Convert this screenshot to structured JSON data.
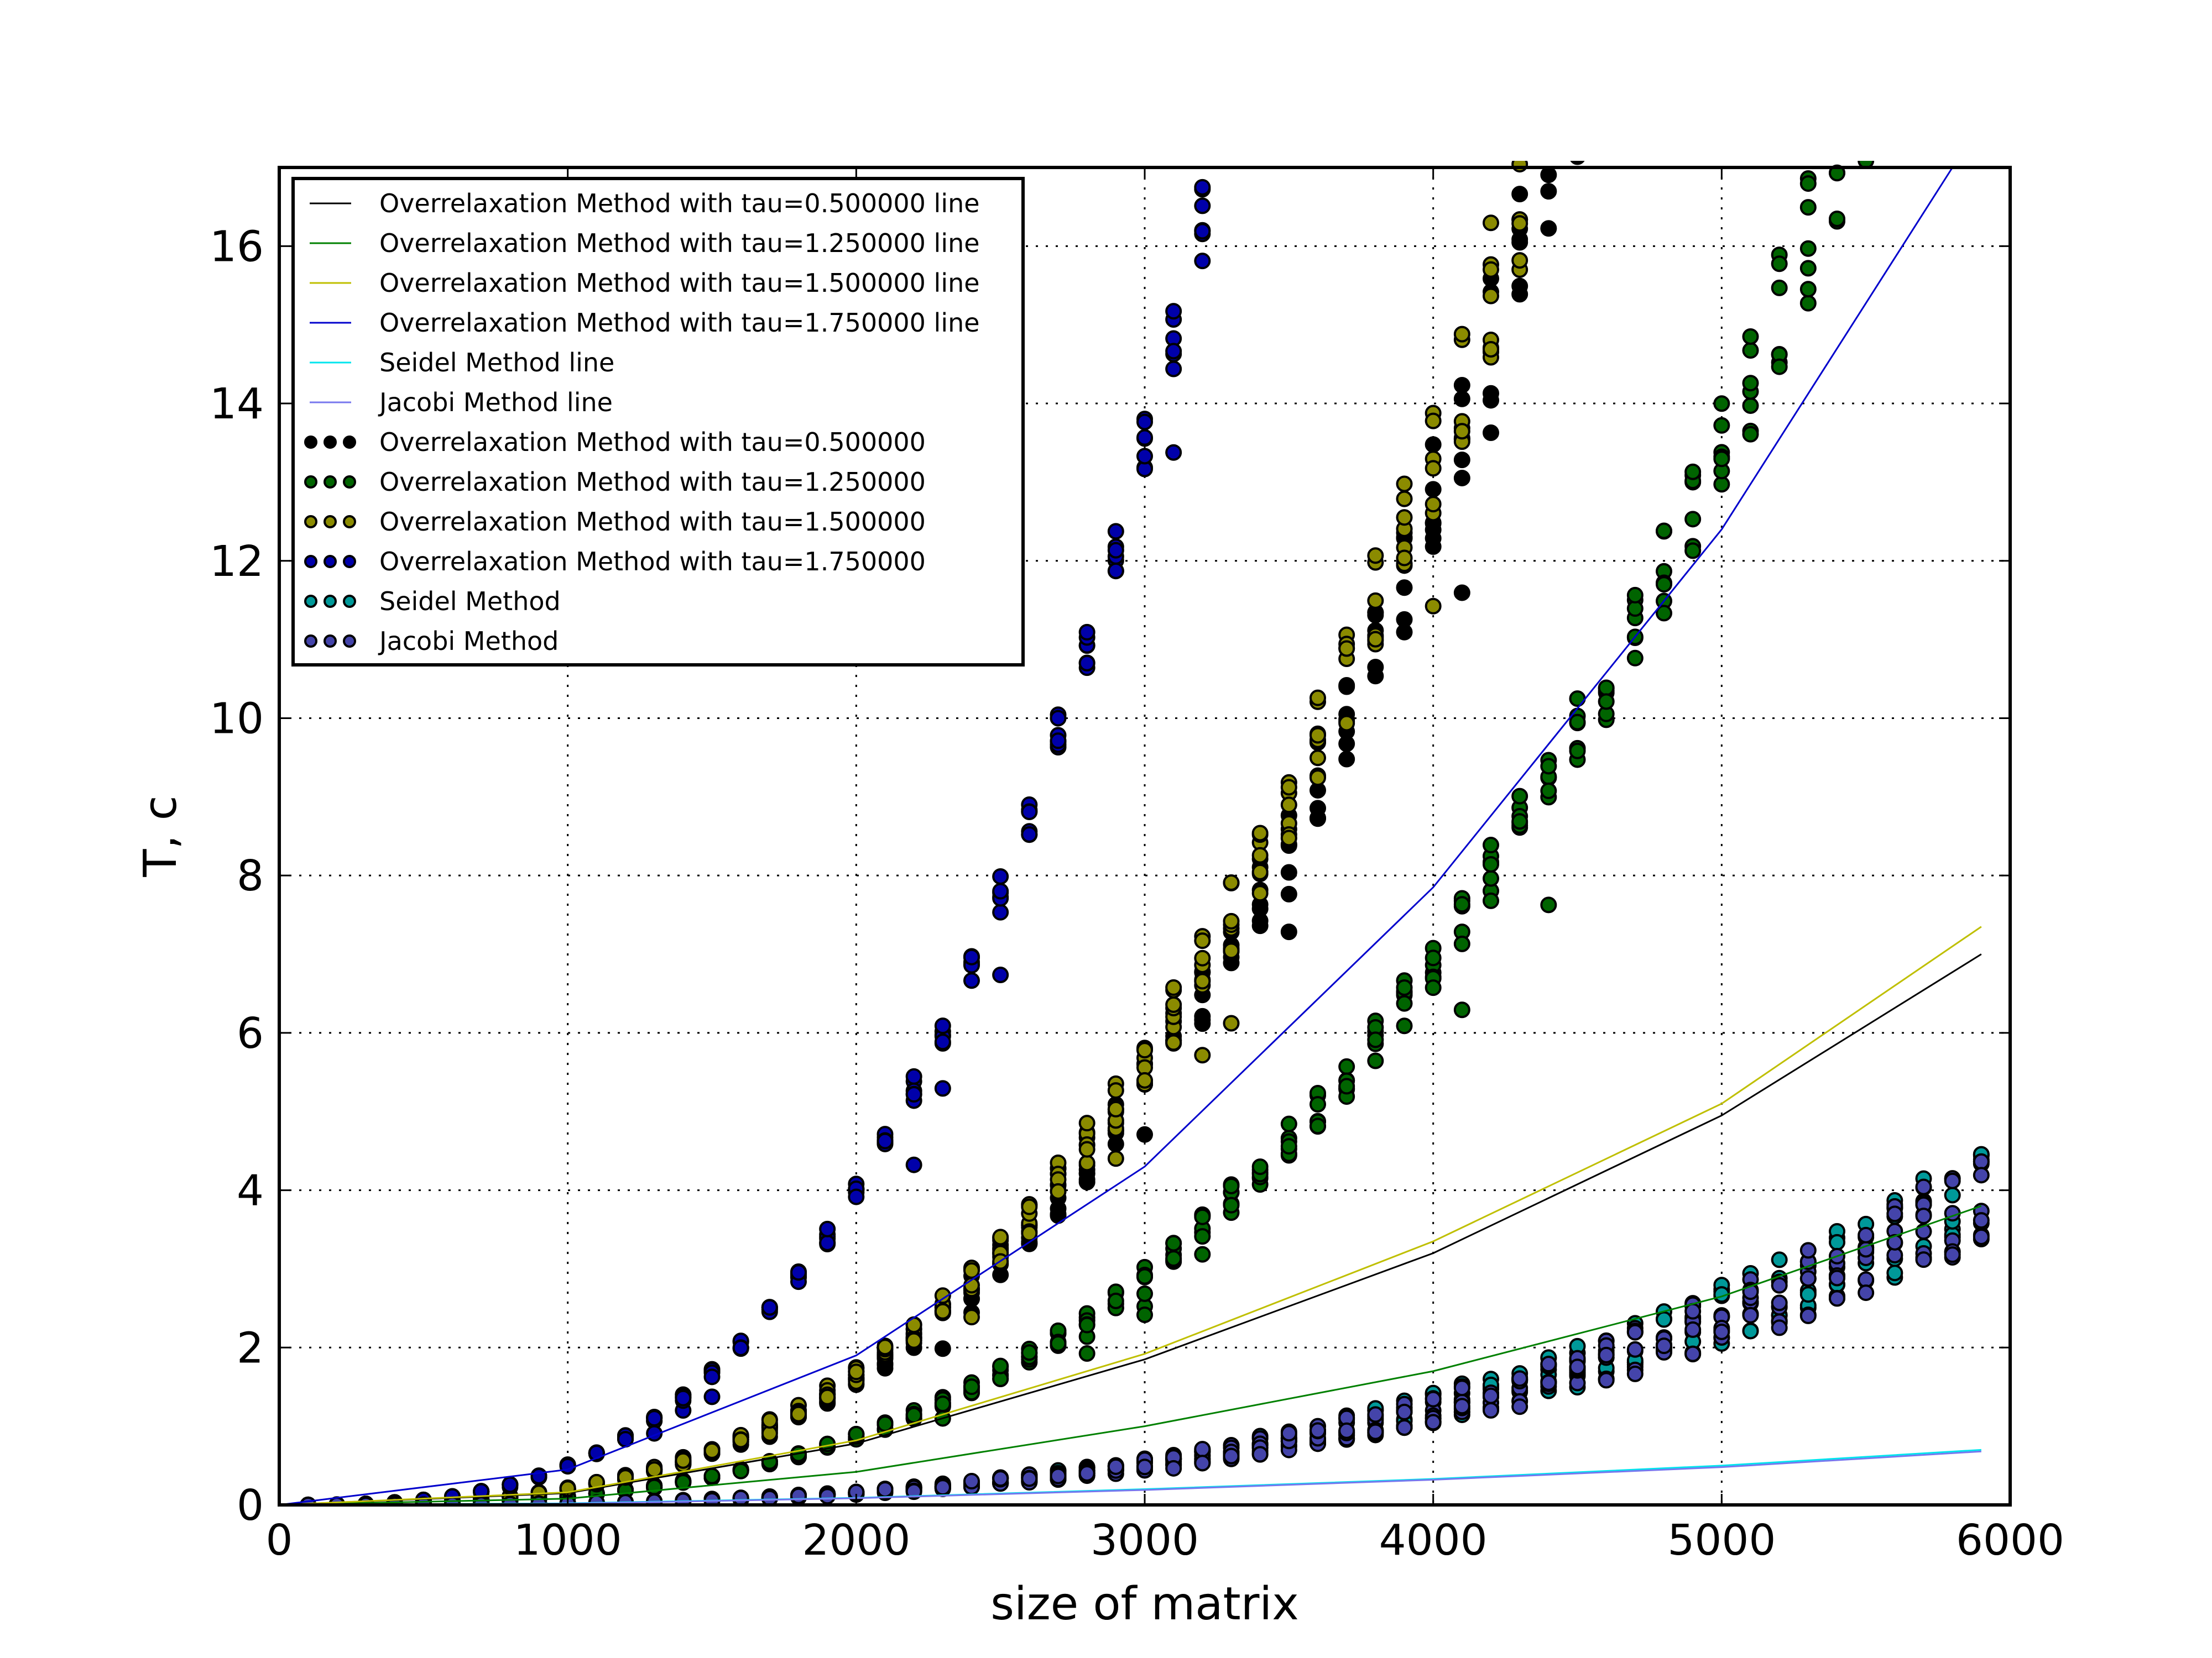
{
  "chart_data": {
    "type": "scatter",
    "xlabel": "size of matrix",
    "ylabel": "T, c",
    "xlim": [
      0,
      6000
    ],
    "ylim": [
      0,
      17
    ],
    "x_ticks": [
      "0",
      "1000",
      "2000",
      "3000",
      "4000",
      "5000",
      "6000"
    ],
    "y_ticks": [
      "0",
      "2",
      "4",
      "6",
      "8",
      "10",
      "12",
      "14",
      "16"
    ],
    "grid": true,
    "legend_position": "top-left",
    "x_samples": [
      100,
      200,
      300,
      400,
      500,
      600,
      700,
      800,
      900,
      1000,
      1100,
      1200,
      1300,
      1400,
      1500,
      1600,
      1700,
      1800,
      1900,
      2000,
      2100,
      2200,
      2300,
      2400,
      2500,
      2600,
      2700,
      2800,
      2900,
      3000,
      3100,
      3200,
      3300,
      3400,
      3500,
      3600,
      3700,
      3800,
      3900,
      4000,
      4100,
      4200,
      4300,
      4400,
      4500,
      4600,
      4700,
      4800,
      4900,
      5000,
      5100,
      5200,
      5300,
      5400,
      5500,
      5600,
      5700,
      5800,
      5900
    ],
    "lines": [
      {
        "name": "Overrelaxation Method with tau=0.500000 line",
        "color": "#000000",
        "points": [
          [
            0,
            0
          ],
          [
            1000,
            0.15
          ],
          [
            2000,
            0.78
          ],
          [
            3000,
            1.85
          ],
          [
            4000,
            3.2
          ],
          [
            5000,
            4.95
          ],
          [
            5900,
            7.0
          ]
        ]
      },
      {
        "name": "Overrelaxation Method with tau=1.250000 line",
        "color": "#008000",
        "points": [
          [
            0,
            0
          ],
          [
            1000,
            0.08
          ],
          [
            2000,
            0.42
          ],
          [
            3000,
            1.0
          ],
          [
            4000,
            1.7
          ],
          [
            5000,
            2.65
          ],
          [
            5900,
            3.8
          ]
        ]
      },
      {
        "name": "Overrelaxation Method with tau=1.500000 line",
        "color": "#bfbf00",
        "points": [
          [
            0,
            0
          ],
          [
            1000,
            0.16
          ],
          [
            2000,
            0.82
          ],
          [
            3000,
            1.92
          ],
          [
            4000,
            3.35
          ],
          [
            5000,
            5.1
          ],
          [
            5900,
            7.35
          ]
        ]
      },
      {
        "name": "Overrelaxation Method with tau=1.750000 line",
        "color": "#0000cc",
        "points": [
          [
            0,
            0
          ],
          [
            1000,
            0.45
          ],
          [
            2000,
            1.9
          ],
          [
            3000,
            4.3
          ],
          [
            4000,
            7.85
          ],
          [
            5000,
            12.4
          ],
          [
            5800,
            17.0
          ]
        ]
      },
      {
        "name": "Seidel Method line",
        "color": "#00e5ee",
        "points": [
          [
            0,
            0
          ],
          [
            1000,
            0.02
          ],
          [
            2000,
            0.09
          ],
          [
            3000,
            0.2
          ],
          [
            4000,
            0.33
          ],
          [
            5000,
            0.5
          ],
          [
            5900,
            0.7
          ]
        ]
      },
      {
        "name": "Jacobi Method line",
        "color": "#7777ee",
        "points": [
          [
            0,
            0
          ],
          [
            1000,
            0.015
          ],
          [
            2000,
            0.085
          ],
          [
            3000,
            0.19
          ],
          [
            4000,
            0.32
          ],
          [
            5000,
            0.48
          ],
          [
            5900,
            0.68
          ]
        ]
      }
    ],
    "series": [
      {
        "name": "Overrelaxation Method with tau=0.500000",
        "color": "#000000",
        "a": 2.01e-10,
        "spread": 0.06
      },
      {
        "name": "Overrelaxation Method with tau=1.250000",
        "color": "#006400",
        "a": 1.09e-10,
        "spread": 0.05
      },
      {
        "name": "Overrelaxation Method with tau=1.500000",
        "color": "#8b8b00",
        "a": 2.11e-10,
        "spread": 0.06
      },
      {
        "name": "Overrelaxation Method with tau=1.750000",
        "color": "#0000aa",
        "a": 5e-10,
        "spread": 0.03
      },
      {
        "name": "Seidel Method",
        "color": "#009999",
        "a": 2e-11,
        "spread": 0.15
      },
      {
        "name": "Jacobi Method",
        "color": "#4444aa",
        "a": 1.95e-11,
        "spread": 0.15
      }
    ]
  }
}
